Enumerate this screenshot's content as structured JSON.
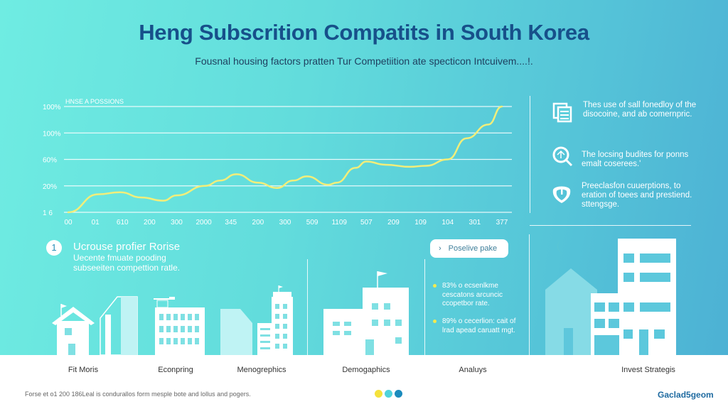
{
  "header": {
    "title": "Heng Subscrition Compatits in South Korea",
    "subtitle": "Fousnal housing factors pratten Tur Competiition ate specticon Intcuivem....!."
  },
  "chart_data": {
    "type": "line",
    "title": "HNSE A POSSIONS",
    "xlabel": "",
    "ylabel": "",
    "categories": [
      "00",
      "01",
      "610",
      "200",
      "300",
      "2000",
      "345",
      "200",
      "300",
      "509",
      "1109",
      "507",
      "209",
      "109",
      "104",
      "301",
      "377"
    ],
    "y_tick_labels": [
      "1 6",
      "20%",
      "60%",
      "100%",
      "100%"
    ],
    "ylim": [
      0,
      100
    ],
    "grid": true,
    "series": [
      {
        "color": "#f2ee7a",
        "points": [
          [
            0,
            0
          ],
          [
            1.1,
            17
          ],
          [
            1.9,
            19
          ],
          [
            2.7,
            14
          ],
          [
            3.5,
            11
          ],
          [
            4.0,
            16
          ],
          [
            5.05,
            25
          ],
          [
            5.6,
            30
          ],
          [
            6.2,
            36
          ],
          [
            7.0,
            28
          ],
          [
            7.7,
            23
          ],
          [
            8.3,
            30
          ],
          [
            8.8,
            34
          ],
          [
            9.6,
            26
          ],
          [
            9.9,
            28
          ],
          [
            10.6,
            42
          ],
          [
            11.0,
            48
          ],
          [
            11.7,
            45
          ],
          [
            12.6,
            43
          ],
          [
            13.2,
            44
          ],
          [
            14.0,
            50
          ],
          [
            14.7,
            70
          ],
          [
            15.5,
            83
          ],
          [
            16.0,
            100
          ]
        ]
      }
    ]
  },
  "insights": [
    {
      "icon": "document-icon",
      "text": "Thes use of sall fonedloy of the disocoine, and ab comernpric."
    },
    {
      "icon": "magnifier-icon",
      "text": "The locsing budites for ponns emalt coserees.'"
    },
    {
      "icon": "shield-icon",
      "text": "Preeclasfon cuuerptions, to eration of toees and prestiend. sttengsge."
    }
  ],
  "step": {
    "number": "1",
    "title": "Ucrouse profier Rorise",
    "text": "Uecente fmuate pooding subseeiten compettion ratle."
  },
  "pill_button": {
    "label": "Poselive pake"
  },
  "bullets": [
    "83% o ecsenlkme cescatons arcuncic ccopetbor rate.",
    "89% o cecerlion: cait of lrad apead caruatt mgt."
  ],
  "footer": {
    "categories": [
      "Fit Moris",
      "Econpring",
      "Menogrephics",
      "Demogaphics",
      "Analuys",
      "Invest Strategis"
    ],
    "footnote": "Forse et o1 200 186Leal is condurallos form mesple bote and lollus and pogers.",
    "brand": "Gaclad5geom",
    "dots": [
      "#f5e23c",
      "#4fd3dc",
      "#1b8bbd"
    ]
  },
  "colors": {
    "accent_line": "#f2ee7a",
    "title": "#17508a",
    "brand": "#1e6aa0"
  }
}
